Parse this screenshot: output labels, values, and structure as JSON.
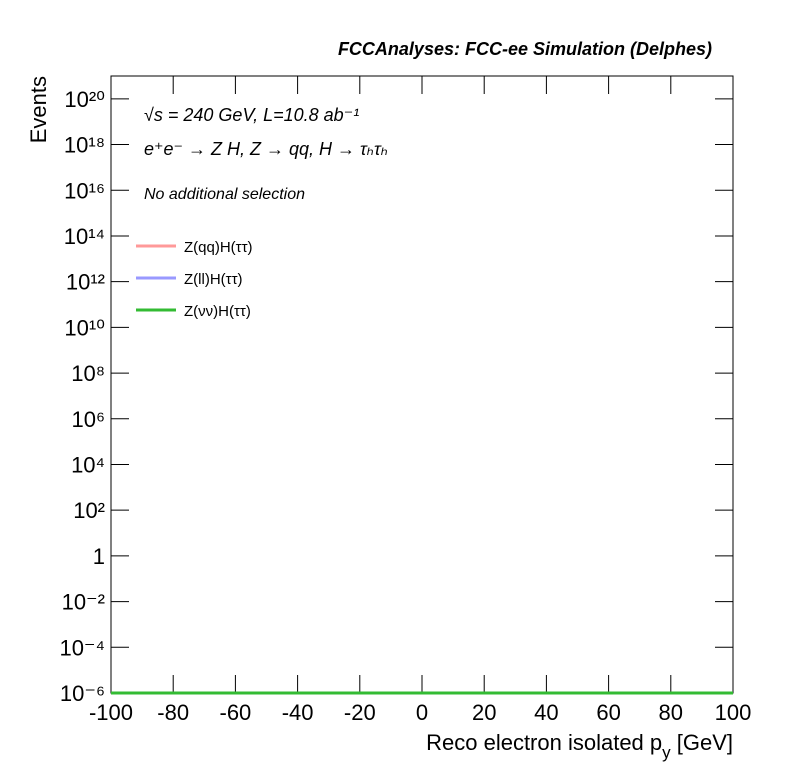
{
  "chart_data": {
    "type": "line",
    "title": "FCCAnalyses: FCC-ee Simulation (Delphes)",
    "annotations": [
      "√s = 240 GeV, L=10.8 ab⁻¹",
      "e⁺e⁻ → Z H, Z → qq, H → τₕτₕ",
      "No additional selection"
    ],
    "x_label": [
      "Reco electron isolated p",
      "y",
      " [GeV]"
    ],
    "y_label": "Events",
    "x": [
      -100,
      100
    ],
    "series": [
      {
        "name": "Z(qq)H(ττ)",
        "color": "#ff9999",
        "values": [
          1e-06,
          1e-06
        ]
      },
      {
        "name": "Z(ll)H(ττ)",
        "color": "#9999ff",
        "values": [
          1e-06,
          1e-06
        ]
      },
      {
        "name": "Z(νν)H(ττ)",
        "color": "#33bb33",
        "values": [
          1e-06,
          1e-06
        ]
      }
    ],
    "xlim": [
      -100,
      100
    ],
    "xticks": [
      -100,
      -80,
      -60,
      -40,
      -20,
      0,
      20,
      40,
      60,
      80,
      100
    ],
    "ylim": [
      1e-06,
      1e+21
    ],
    "log_scale": "y",
    "yticks": [
      {
        "value": 1e-06,
        "label": "10⁻⁶"
      },
      {
        "value": 0.0001,
        "label": "10⁻⁴"
      },
      {
        "value": 0.01,
        "label": "10⁻²"
      },
      1,
      {
        "value": 100,
        "label": "10²"
      },
      {
        "value": 10000,
        "label": "10⁴"
      },
      {
        "value": 1000000,
        "label": "10⁶"
      },
      {
        "value": 100000000,
        "label": "10⁸"
      },
      {
        "value": 10000000000.0,
        "label": "10¹⁰"
      },
      {
        "value": 1000000000000.0,
        "label": "10¹²"
      },
      {
        "value": 100000000000000.0,
        "label": "10¹⁴"
      },
      {
        "value": 1e+16,
        "label": "10¹⁶"
      },
      {
        "value": 1e+18,
        "label": "10¹⁸"
      },
      {
        "value": 1e+20,
        "label": "10²⁰"
      }
    ],
    "grid": false,
    "legend": "top-left"
  }
}
